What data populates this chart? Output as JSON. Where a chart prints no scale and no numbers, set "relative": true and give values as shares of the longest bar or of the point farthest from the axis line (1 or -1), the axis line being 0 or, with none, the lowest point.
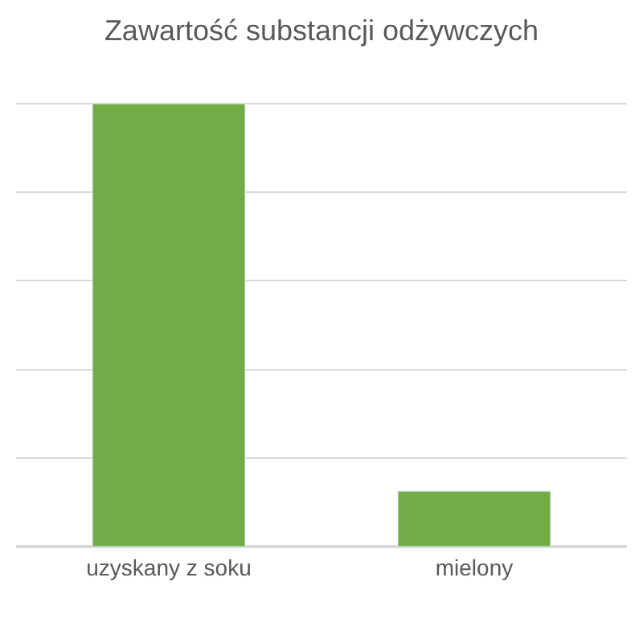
{
  "chart_data": {
    "type": "bar",
    "title": "Zawartość substancji odżywczych",
    "categories": [
      "uzyskany z soku",
      "mielony"
    ],
    "values": [
      1,
      0.125
    ],
    "color": "#70ad47",
    "relative": true,
    "grid": "y"
  }
}
